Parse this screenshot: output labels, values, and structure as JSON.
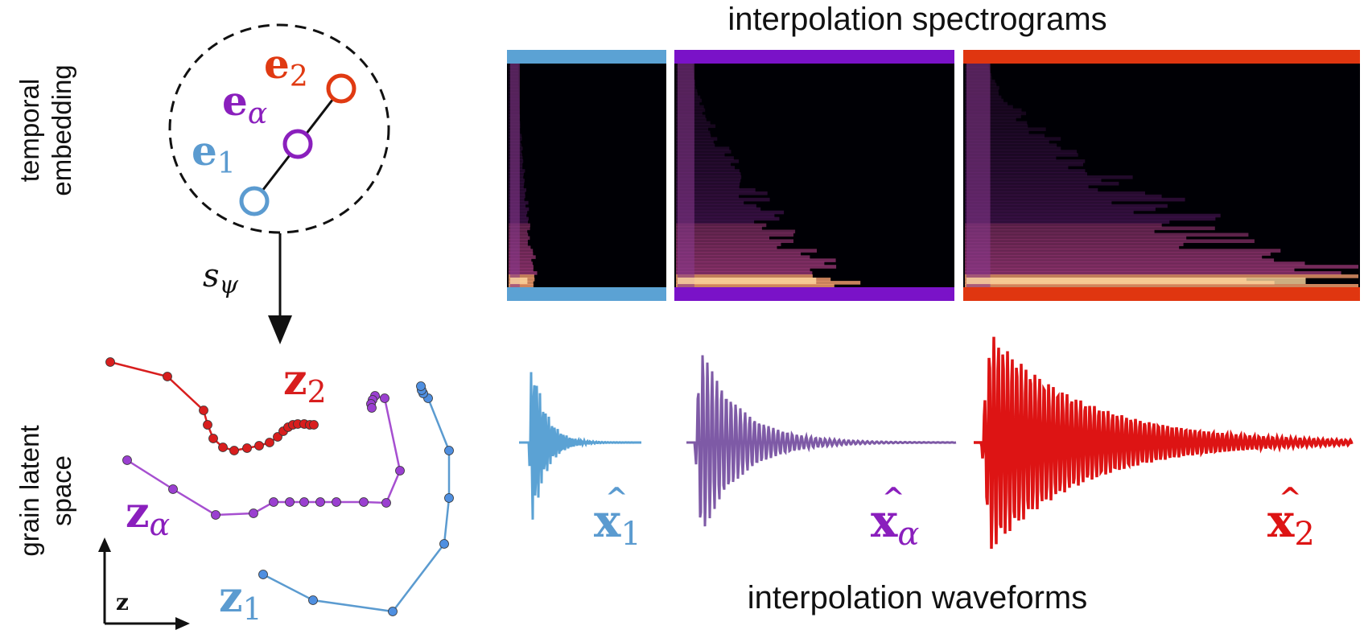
{
  "titles": {
    "spectrograms": "interpolation spectrograms",
    "waveforms": "interpolation waveforms"
  },
  "side_labels": {
    "temporal_line1": "temporal",
    "temporal_line2": "embedding",
    "latent_line1": "grain latent",
    "latent_line2": "space"
  },
  "embedding": {
    "mapping_label": "s",
    "mapping_sub": "ψ",
    "points": [
      {
        "id": "e1",
        "base": "e",
        "sub": "1",
        "color": "#5b9bd0"
      },
      {
        "id": "ea",
        "base": "e",
        "sub": "α",
        "color": "#8a1fbd"
      },
      {
        "id": "e2",
        "base": "e",
        "sub": "2",
        "color": "#e03a12"
      }
    ]
  },
  "latent": {
    "axis_label": "z",
    "curves": [
      {
        "id": "z2",
        "base": "z",
        "sub": "2",
        "color": "#d81e1e",
        "point_color": "#d81e1e"
      },
      {
        "id": "za",
        "base": "z",
        "sub": "α",
        "color": "#a64fd0",
        "point_color": "#9a3fd0"
      },
      {
        "id": "z1",
        "base": "z",
        "sub": "1",
        "color": "#5b9bd0",
        "point_color": "#4f8fe0"
      }
    ]
  },
  "spectrograms": [
    {
      "id": "x1",
      "bar_color": "#5ba2d4"
    },
    {
      "id": "xa",
      "bar_color": "#7a12c8"
    },
    {
      "id": "x2",
      "bar_color": "#e03610"
    }
  ],
  "waveforms": [
    {
      "id": "x1",
      "base": "x",
      "sub": "1",
      "color": "#5ba2d4",
      "label_color": "#5b9bd0"
    },
    {
      "id": "xa",
      "base": "x",
      "sub": "α",
      "color": "#7e5aa6",
      "label_color": "#8a1fbd"
    },
    {
      "id": "x2",
      "base": "x",
      "sub": "2",
      "color": "#dd1414",
      "label_color": "#dd1414"
    }
  ]
}
